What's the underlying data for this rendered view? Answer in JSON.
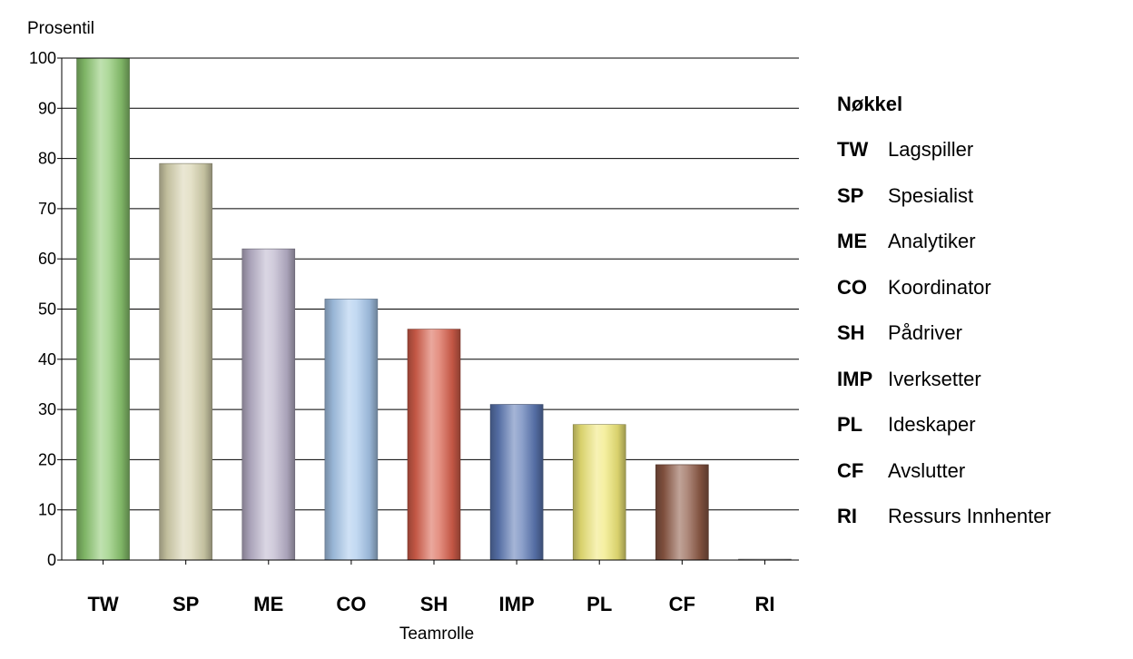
{
  "chart_data": {
    "type": "bar",
    "ylabel": "Prosentil",
    "xlabel": "Teamrolle",
    "ylim": [
      0,
      100
    ],
    "yticks": [
      0,
      10,
      20,
      30,
      40,
      50,
      60,
      70,
      80,
      90,
      100
    ],
    "grid": true,
    "categories": [
      "TW",
      "SP",
      "ME",
      "CO",
      "SH",
      "IMP",
      "PL",
      "CF",
      "RI"
    ],
    "values": [
      100,
      79,
      62,
      52,
      46,
      31,
      27,
      19,
      0
    ],
    "colors": [
      "#8cc870",
      "#d8d4b0",
      "#bcb4cc",
      "#a8c8ec",
      "#d8604c",
      "#5c78b4",
      "#f0e878",
      "#8c5844",
      "#c4c4c4"
    ]
  },
  "legend": {
    "title": "Nøkkel",
    "placement": "right",
    "items": [
      {
        "code": "TW",
        "name": "Lagspiller"
      },
      {
        "code": "SP",
        "name": "Spesialist"
      },
      {
        "code": "ME",
        "name": "Analytiker"
      },
      {
        "code": "CO",
        "name": "Koordinator"
      },
      {
        "code": "SH",
        "name": "Pådriver"
      },
      {
        "code": "IMP",
        "name": "Iverksetter"
      },
      {
        "code": "PL",
        "name": "Ideskaper"
      },
      {
        "code": "CF",
        "name": "Avslutter"
      },
      {
        "code": "RI",
        "name": "Ressurs Innhenter"
      }
    ]
  }
}
